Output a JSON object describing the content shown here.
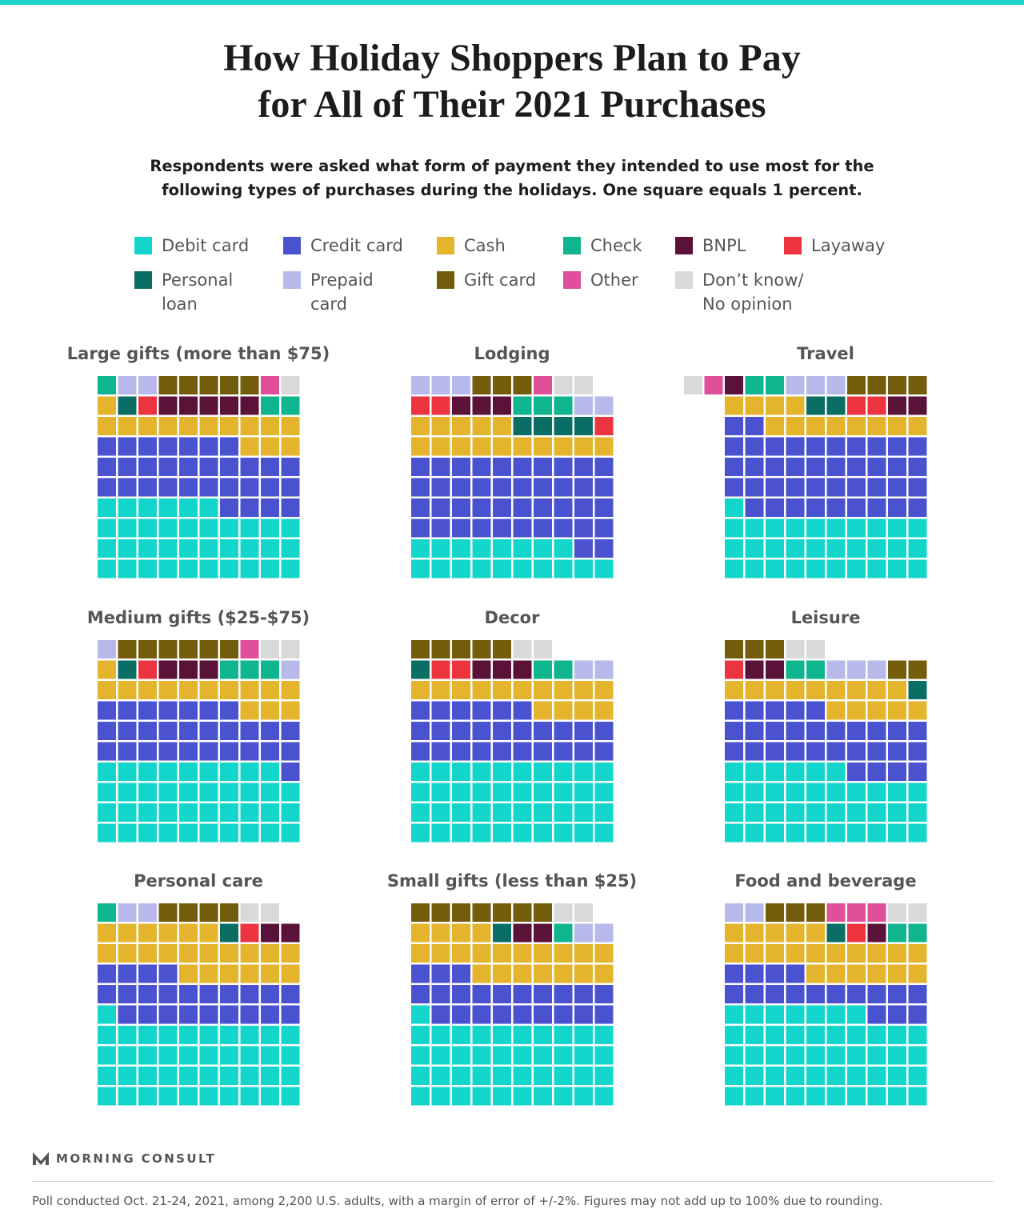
{
  "title_lines": [
    "How Holiday Shoppers Plan to Pay",
    "for All of Their 2021 Purchases"
  ],
  "subtitle_lines": [
    "Respondents were asked what form of payment they intended to use most for the",
    "following types of purchases during the holidays. One square equals 1 percent."
  ],
  "brand": "MORNING CONSULT",
  "footnote": "Poll conducted Oct. 21-24, 2021, among 2,200 U.S. adults, with a margin of error of +/-2%. Figures may not add up to 100% due to rounding.",
  "colors": {
    "debit": "#12d6cb",
    "credit": "#4a52cf",
    "cash": "#e3b42c",
    "check": "#0fb58e",
    "bnpl": "#5b1238",
    "layaway": "#eb343e",
    "loan": "#0a6e65",
    "prepaid": "#b6b9ea",
    "gift": "#735d0c",
    "other": "#e0509a",
    "dk": "#d9d9d9"
  },
  "chart_data": {
    "type": "waffle",
    "unit": "One square equals 1 percent",
    "legend": [
      {
        "key": "debit",
        "label": "Debit card"
      },
      {
        "key": "credit",
        "label": "Credit card"
      },
      {
        "key": "cash",
        "label": "Cash"
      },
      {
        "key": "check",
        "label": "Check"
      },
      {
        "key": "bnpl",
        "label": "BNPL"
      },
      {
        "key": "layaway",
        "label": "Layaway"
      },
      {
        "key": "loan",
        "label": "Personal\nloan"
      },
      {
        "key": "prepaid",
        "label": "Prepaid\ncard"
      },
      {
        "key": "gift",
        "label": "Gift card"
      },
      {
        "key": "other",
        "label": "Other"
      },
      {
        "key": "dk",
        "label": "Don’t know/\nNo opinion"
      }
    ],
    "panels": [
      {
        "title": "Large gifts (more than $75)",
        "values": {
          "debit": 36,
          "credit": 31,
          "cash": 14,
          "check": 3,
          "bnpl": 5,
          "layaway": 1,
          "loan": 1,
          "prepaid": 2,
          "gift": 5,
          "other": 1,
          "dk": 1
        }
      },
      {
        "title": "Lodging",
        "values": {
          "debit": 18,
          "credit": 42,
          "cash": 15,
          "check": 3,
          "bnpl": 3,
          "layaway": 3,
          "loan": 4,
          "prepaid": 5,
          "gift": 3,
          "other": 1,
          "dk": 2
        }
      },
      {
        "title": "Travel",
        "values": {
          "debit": 31,
          "credit": 41,
          "cash": 12,
          "check": 2,
          "bnpl": 3,
          "layaway": 2,
          "loan": 2,
          "prepaid": 3,
          "gift": 4,
          "other": 1,
          "dk": 1
        }
      },
      {
        "title": "Medium gifts ($25-$75)",
        "values": {
          "debit": 39,
          "credit": 28,
          "cash": 14,
          "check": 3,
          "bnpl": 3,
          "layaway": 1,
          "loan": 1,
          "prepaid": 2,
          "gift": 6,
          "other": 1,
          "dk": 2
        }
      },
      {
        "title": "Decor",
        "values": {
          "debit": 40,
          "credit": 26,
          "cash": 14,
          "check": 2,
          "bnpl": 3,
          "layaway": 2,
          "loan": 1,
          "prepaid": 2,
          "gift": 5,
          "other": 0,
          "dk": 2
        }
      },
      {
        "title": "Leisure",
        "values": {
          "debit": 36,
          "credit": 29,
          "cash": 14,
          "check": 2,
          "bnpl": 2,
          "layaway": 1,
          "loan": 1,
          "prepaid": 3,
          "gift": 5,
          "other": 0,
          "dk": 2
        }
      },
      {
        "title": "Personal care",
        "values": {
          "debit": 41,
          "credit": 23,
          "cash": 22,
          "check": 1,
          "bnpl": 2,
          "layaway": 1,
          "loan": 1,
          "prepaid": 2,
          "gift": 4,
          "other": 0,
          "dk": 2
        }
      },
      {
        "title": "Small gifts (less than $25)",
        "values": {
          "debit": 41,
          "credit": 22,
          "cash": 21,
          "check": 1,
          "bnpl": 2,
          "layaway": 0,
          "loan": 1,
          "prepaid": 2,
          "gift": 7,
          "other": 0,
          "dk": 2
        }
      },
      {
        "title": "Food and beverage",
        "values": {
          "debit": 47,
          "credit": 17,
          "cash": 21,
          "check": 2,
          "bnpl": 1,
          "layaway": 1,
          "loan": 1,
          "prepaid": 2,
          "gift": 3,
          "other": 3,
          "dk": 2
        }
      }
    ]
  }
}
